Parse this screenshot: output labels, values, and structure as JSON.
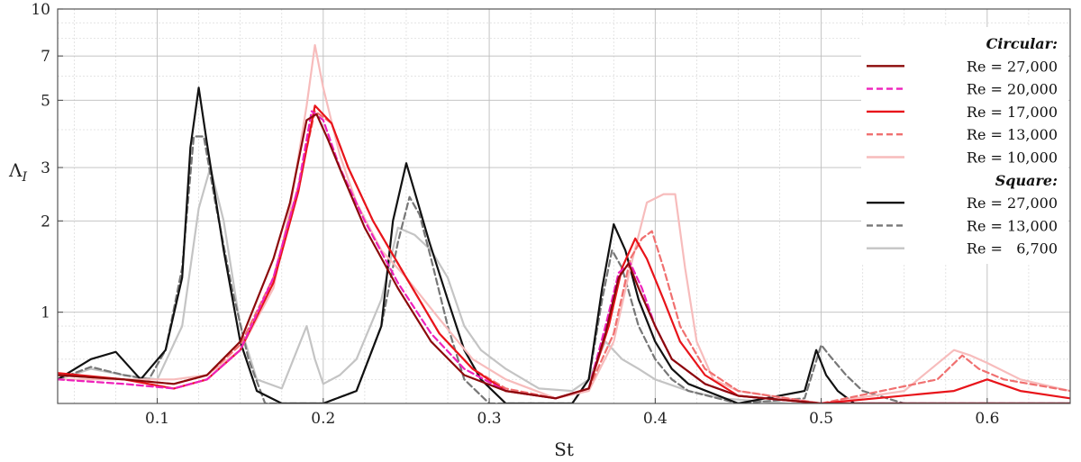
{
  "chart_data": {
    "type": "line",
    "xlabel": "St",
    "ylabel": "Λ",
    "ylabel_sub": "I",
    "xlim": [
      0.04,
      0.65
    ],
    "ylim": [
      0.5,
      10
    ],
    "yscale": "log",
    "grid": true,
    "legend_position": "right",
    "x_ticks": [
      0.1,
      0.2,
      0.3,
      0.4,
      0.5,
      0.6
    ],
    "x_tick_labels": [
      "0.1",
      "0.2",
      "0.3",
      "0.4",
      "0.5",
      "0.6"
    ],
    "y_ticks": [
      1,
      2,
      3,
      5,
      7,
      10
    ],
    "y_tick_labels": [
      "1",
      "2",
      "3",
      "5",
      "7",
      "10"
    ],
    "legend_groups": [
      {
        "title": "Circular:",
        "entries": [
          {
            "label": "Re = 27,000",
            "color": "#8b0a0a",
            "dash": "solid"
          },
          {
            "label": "Re = 20,000",
            "color": "#ee22bb",
            "dash": "dashed"
          },
          {
            "label": "Re = 17,000",
            "color": "#e8141a",
            "dash": "solid"
          },
          {
            "label": "Re = 13,000",
            "color": "#f07070",
            "dash": "dashed"
          },
          {
            "label": "Re = 10,000",
            "color": "#f7bcbc",
            "dash": "solid"
          }
        ]
      },
      {
        "title": "Square:",
        "entries": [
          {
            "label": "Re = 27,000",
            "color": "#111111",
            "dash": "solid"
          },
          {
            "label": "Re = 13,000",
            "color": "#777777",
            "dash": "dashed"
          },
          {
            "label": "Re =   6,700",
            "color": "#c4c4c4",
            "dash": "solid"
          }
        ]
      }
    ],
    "series": [
      {
        "group": "Square",
        "color": "#c4c4c4",
        "dash": "solid",
        "x": [
          0.04,
          0.06,
          0.08,
          0.1,
          0.115,
          0.125,
          0.132,
          0.14,
          0.15,
          0.16,
          0.175,
          0.19,
          0.195,
          0.2,
          0.21,
          0.22,
          0.235,
          0.245,
          0.255,
          0.265,
          0.275,
          0.285,
          0.295,
          0.31,
          0.33,
          0.35,
          0.36,
          0.37,
          0.38,
          0.39,
          0.4,
          0.42,
          0.44,
          0.48,
          0.5,
          0.52,
          0.55,
          0.6,
          0.65
        ],
        "y": [
          0.6,
          0.65,
          0.62,
          0.6,
          0.9,
          2.2,
          3.0,
          2.0,
          0.9,
          0.6,
          0.56,
          0.9,
          0.7,
          0.58,
          0.62,
          0.7,
          1.1,
          1.9,
          1.8,
          1.6,
          1.3,
          0.9,
          0.75,
          0.65,
          0.56,
          0.55,
          0.6,
          0.8,
          0.7,
          0.65,
          0.6,
          0.55,
          0.52,
          0.5,
          0.5,
          0.5,
          0.5,
          0.5,
          0.5
        ]
      },
      {
        "group": "Square",
        "color": "#777777",
        "dash": "dashed",
        "x": [
          0.04,
          0.06,
          0.08,
          0.095,
          0.105,
          0.115,
          0.122,
          0.128,
          0.135,
          0.145,
          0.155,
          0.165,
          0.2,
          0.22,
          0.235,
          0.245,
          0.252,
          0.258,
          0.265,
          0.275,
          0.285,
          0.3,
          0.35,
          0.36,
          0.368,
          0.374,
          0.38,
          0.39,
          0.4,
          0.41,
          0.42,
          0.45,
          0.49,
          0.5,
          0.505,
          0.515,
          0.525,
          0.55,
          0.6,
          0.65
        ],
        "y": [
          0.6,
          0.66,
          0.62,
          0.6,
          0.75,
          1.4,
          3.8,
          3.8,
          2.3,
          1.2,
          0.7,
          0.5,
          0.5,
          0.55,
          0.9,
          1.7,
          2.4,
          2.1,
          1.5,
          0.9,
          0.6,
          0.5,
          0.5,
          0.6,
          1.1,
          1.6,
          1.4,
          0.9,
          0.7,
          0.6,
          0.55,
          0.5,
          0.52,
          0.78,
          0.72,
          0.62,
          0.55,
          0.5,
          0.5,
          0.5
        ]
      },
      {
        "group": "Square",
        "color": "#111111",
        "dash": "solid",
        "x": [
          0.04,
          0.06,
          0.075,
          0.09,
          0.105,
          0.115,
          0.12,
          0.125,
          0.13,
          0.14,
          0.15,
          0.16,
          0.175,
          0.2,
          0.22,
          0.235,
          0.242,
          0.25,
          0.256,
          0.264,
          0.275,
          0.285,
          0.295,
          0.31,
          0.35,
          0.36,
          0.368,
          0.375,
          0.382,
          0.39,
          0.4,
          0.41,
          0.42,
          0.45,
          0.49,
          0.497,
          0.503,
          0.51,
          0.52,
          0.55,
          0.6,
          0.65
        ],
        "y": [
          0.6,
          0.7,
          0.74,
          0.6,
          0.75,
          1.3,
          3.5,
          5.5,
          3.6,
          1.6,
          0.8,
          0.55,
          0.5,
          0.5,
          0.55,
          0.9,
          2.0,
          3.1,
          2.4,
          1.7,
          1.1,
          0.75,
          0.6,
          0.5,
          0.5,
          0.6,
          1.2,
          1.95,
          1.6,
          1.1,
          0.8,
          0.65,
          0.58,
          0.5,
          0.55,
          0.75,
          0.62,
          0.55,
          0.5,
          0.5,
          0.5,
          0.5
        ]
      },
      {
        "group": "Circular",
        "color": "#f7bcbc",
        "dash": "solid",
        "x": [
          0.04,
          0.08,
          0.11,
          0.13,
          0.15,
          0.17,
          0.18,
          0.19,
          0.195,
          0.2,
          0.21,
          0.22,
          0.235,
          0.25,
          0.27,
          0.29,
          0.31,
          0.34,
          0.36,
          0.375,
          0.385,
          0.395,
          0.405,
          0.412,
          0.418,
          0.425,
          0.435,
          0.45,
          0.5,
          0.55,
          0.58,
          0.59,
          0.6,
          0.62,
          0.65
        ],
        "y": [
          0.6,
          0.6,
          0.6,
          0.62,
          0.75,
          1.2,
          2.2,
          4.8,
          7.6,
          5.5,
          3.3,
          2.3,
          1.6,
          1.3,
          0.95,
          0.7,
          0.6,
          0.52,
          0.55,
          0.8,
          1.4,
          2.3,
          2.45,
          2.45,
          1.4,
          0.8,
          0.6,
          0.55,
          0.5,
          0.55,
          0.75,
          0.72,
          0.68,
          0.6,
          0.55
        ]
      },
      {
        "group": "Circular",
        "color": "#f07070",
        "dash": "dashed",
        "x": [
          0.04,
          0.08,
          0.11,
          0.13,
          0.15,
          0.17,
          0.185,
          0.195,
          0.2,
          0.205,
          0.215,
          0.23,
          0.25,
          0.27,
          0.29,
          0.31,
          0.34,
          0.36,
          0.375,
          0.385,
          0.392,
          0.398,
          0.405,
          0.415,
          0.43,
          0.45,
          0.5,
          0.57,
          0.585,
          0.595,
          0.61,
          0.65
        ],
        "y": [
          0.62,
          0.6,
          0.58,
          0.62,
          0.78,
          1.3,
          2.6,
          4.6,
          4.4,
          4.2,
          3.0,
          2.0,
          1.3,
          0.85,
          0.65,
          0.56,
          0.52,
          0.56,
          0.85,
          1.5,
          1.75,
          1.85,
          1.4,
          0.9,
          0.65,
          0.55,
          0.5,
          0.6,
          0.72,
          0.65,
          0.6,
          0.55
        ]
      },
      {
        "group": "Circular",
        "color": "#e8141a",
        "dash": "solid",
        "x": [
          0.04,
          0.08,
          0.11,
          0.13,
          0.15,
          0.17,
          0.185,
          0.195,
          0.205,
          0.215,
          0.23,
          0.25,
          0.27,
          0.29,
          0.31,
          0.34,
          0.36,
          0.372,
          0.38,
          0.388,
          0.395,
          0.405,
          0.415,
          0.43,
          0.45,
          0.5,
          0.58,
          0.6,
          0.62,
          0.65
        ],
        "y": [
          0.63,
          0.6,
          0.56,
          0.6,
          0.75,
          1.25,
          2.5,
          4.8,
          4.2,
          3.0,
          2.0,
          1.3,
          0.85,
          0.65,
          0.55,
          0.52,
          0.56,
          0.9,
          1.4,
          1.75,
          1.5,
          1.1,
          0.8,
          0.62,
          0.53,
          0.5,
          0.55,
          0.6,
          0.55,
          0.52
        ]
      },
      {
        "group": "Circular",
        "color": "#ee22bb",
        "dash": "dashed",
        "x": [
          0.04,
          0.08,
          0.11,
          0.13,
          0.15,
          0.17,
          0.185,
          0.193,
          0.2,
          0.21,
          0.225,
          0.245,
          0.265,
          0.285,
          0.31,
          0.34,
          0.36,
          0.37,
          0.378,
          0.385,
          0.392,
          0.4,
          0.41,
          0.43,
          0.45,
          0.5,
          0.65
        ],
        "y": [
          0.6,
          0.58,
          0.56,
          0.6,
          0.75,
          1.3,
          2.6,
          4.6,
          4.3,
          3.0,
          2.0,
          1.25,
          0.85,
          0.65,
          0.55,
          0.52,
          0.56,
          0.9,
          1.35,
          1.45,
          1.2,
          0.9,
          0.7,
          0.58,
          0.53,
          0.5,
          0.5
        ]
      },
      {
        "group": "Circular",
        "color": "#8b0a0a",
        "dash": "solid",
        "x": [
          0.04,
          0.08,
          0.11,
          0.13,
          0.15,
          0.17,
          0.18,
          0.19,
          0.196,
          0.203,
          0.212,
          0.225,
          0.245,
          0.265,
          0.285,
          0.31,
          0.34,
          0.36,
          0.37,
          0.378,
          0.384,
          0.39,
          0.4,
          0.41,
          0.43,
          0.45,
          0.5,
          0.65
        ],
        "y": [
          0.62,
          0.6,
          0.58,
          0.62,
          0.8,
          1.5,
          2.3,
          4.3,
          4.5,
          3.7,
          2.8,
          1.9,
          1.2,
          0.8,
          0.62,
          0.55,
          0.52,
          0.56,
          0.85,
          1.3,
          1.45,
          1.2,
          0.9,
          0.7,
          0.58,
          0.53,
          0.5,
          0.5
        ]
      }
    ]
  }
}
